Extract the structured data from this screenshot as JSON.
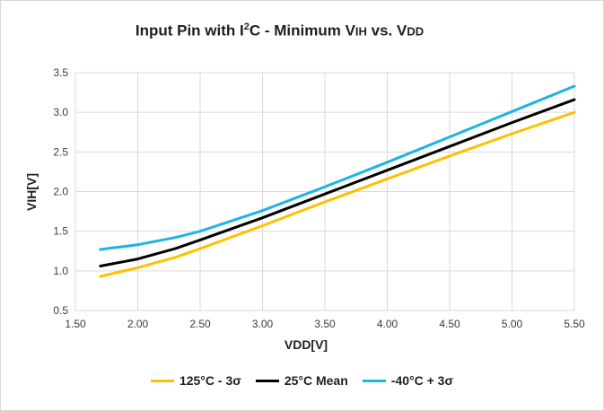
{
  "chart_data": {
    "type": "line",
    "title": {
      "prefix": "Input Pin with I",
      "sup": "2",
      "mid": "C - Minimum V",
      "sub1": "IH",
      "mid2": " vs. V",
      "sub2": "DD"
    },
    "xlabel": "VDD[V]",
    "ylabel": "VIH[V]",
    "xlim": [
      1.5,
      5.5
    ],
    "ylim": [
      0.5,
      3.5
    ],
    "xticks": [
      "1.50",
      "2.00",
      "2.50",
      "3.00",
      "3.50",
      "4.00",
      "4.50",
      "5.00",
      "5.50"
    ],
    "yticks": [
      "0.5",
      "1.0",
      "1.5",
      "2.0",
      "2.5",
      "3.0",
      "3.5"
    ],
    "grid": true,
    "legend_position": "bottom",
    "series": [
      {
        "name": "125°C - 3σ",
        "color": "#ffc000",
        "points": [
          [
            1.7,
            0.93
          ],
          [
            2.0,
            1.04
          ],
          [
            2.3,
            1.17
          ],
          [
            2.5,
            1.28
          ],
          [
            3.0,
            1.57
          ],
          [
            3.5,
            1.87
          ],
          [
            4.0,
            2.16
          ],
          [
            4.5,
            2.45
          ],
          [
            5.0,
            2.73
          ],
          [
            5.5,
            3.0
          ]
        ]
      },
      {
        "name": "25°C Mean",
        "color": "#000000",
        "points": [
          [
            1.7,
            1.06
          ],
          [
            2.0,
            1.15
          ],
          [
            2.3,
            1.28
          ],
          [
            2.5,
            1.39
          ],
          [
            3.0,
            1.67
          ],
          [
            3.5,
            1.97
          ],
          [
            4.0,
            2.27
          ],
          [
            4.5,
            2.57
          ],
          [
            5.0,
            2.87
          ],
          [
            5.5,
            3.16
          ]
        ]
      },
      {
        "name": "-40°C + 3σ",
        "color": "#1fb4e6",
        "points": [
          [
            1.7,
            1.27
          ],
          [
            2.0,
            1.33
          ],
          [
            2.3,
            1.42
          ],
          [
            2.5,
            1.5
          ],
          [
            3.0,
            1.76
          ],
          [
            3.5,
            2.06
          ],
          [
            4.0,
            2.37
          ],
          [
            4.5,
            2.69
          ],
          [
            5.0,
            3.01
          ],
          [
            5.5,
            3.33
          ]
        ]
      }
    ]
  }
}
